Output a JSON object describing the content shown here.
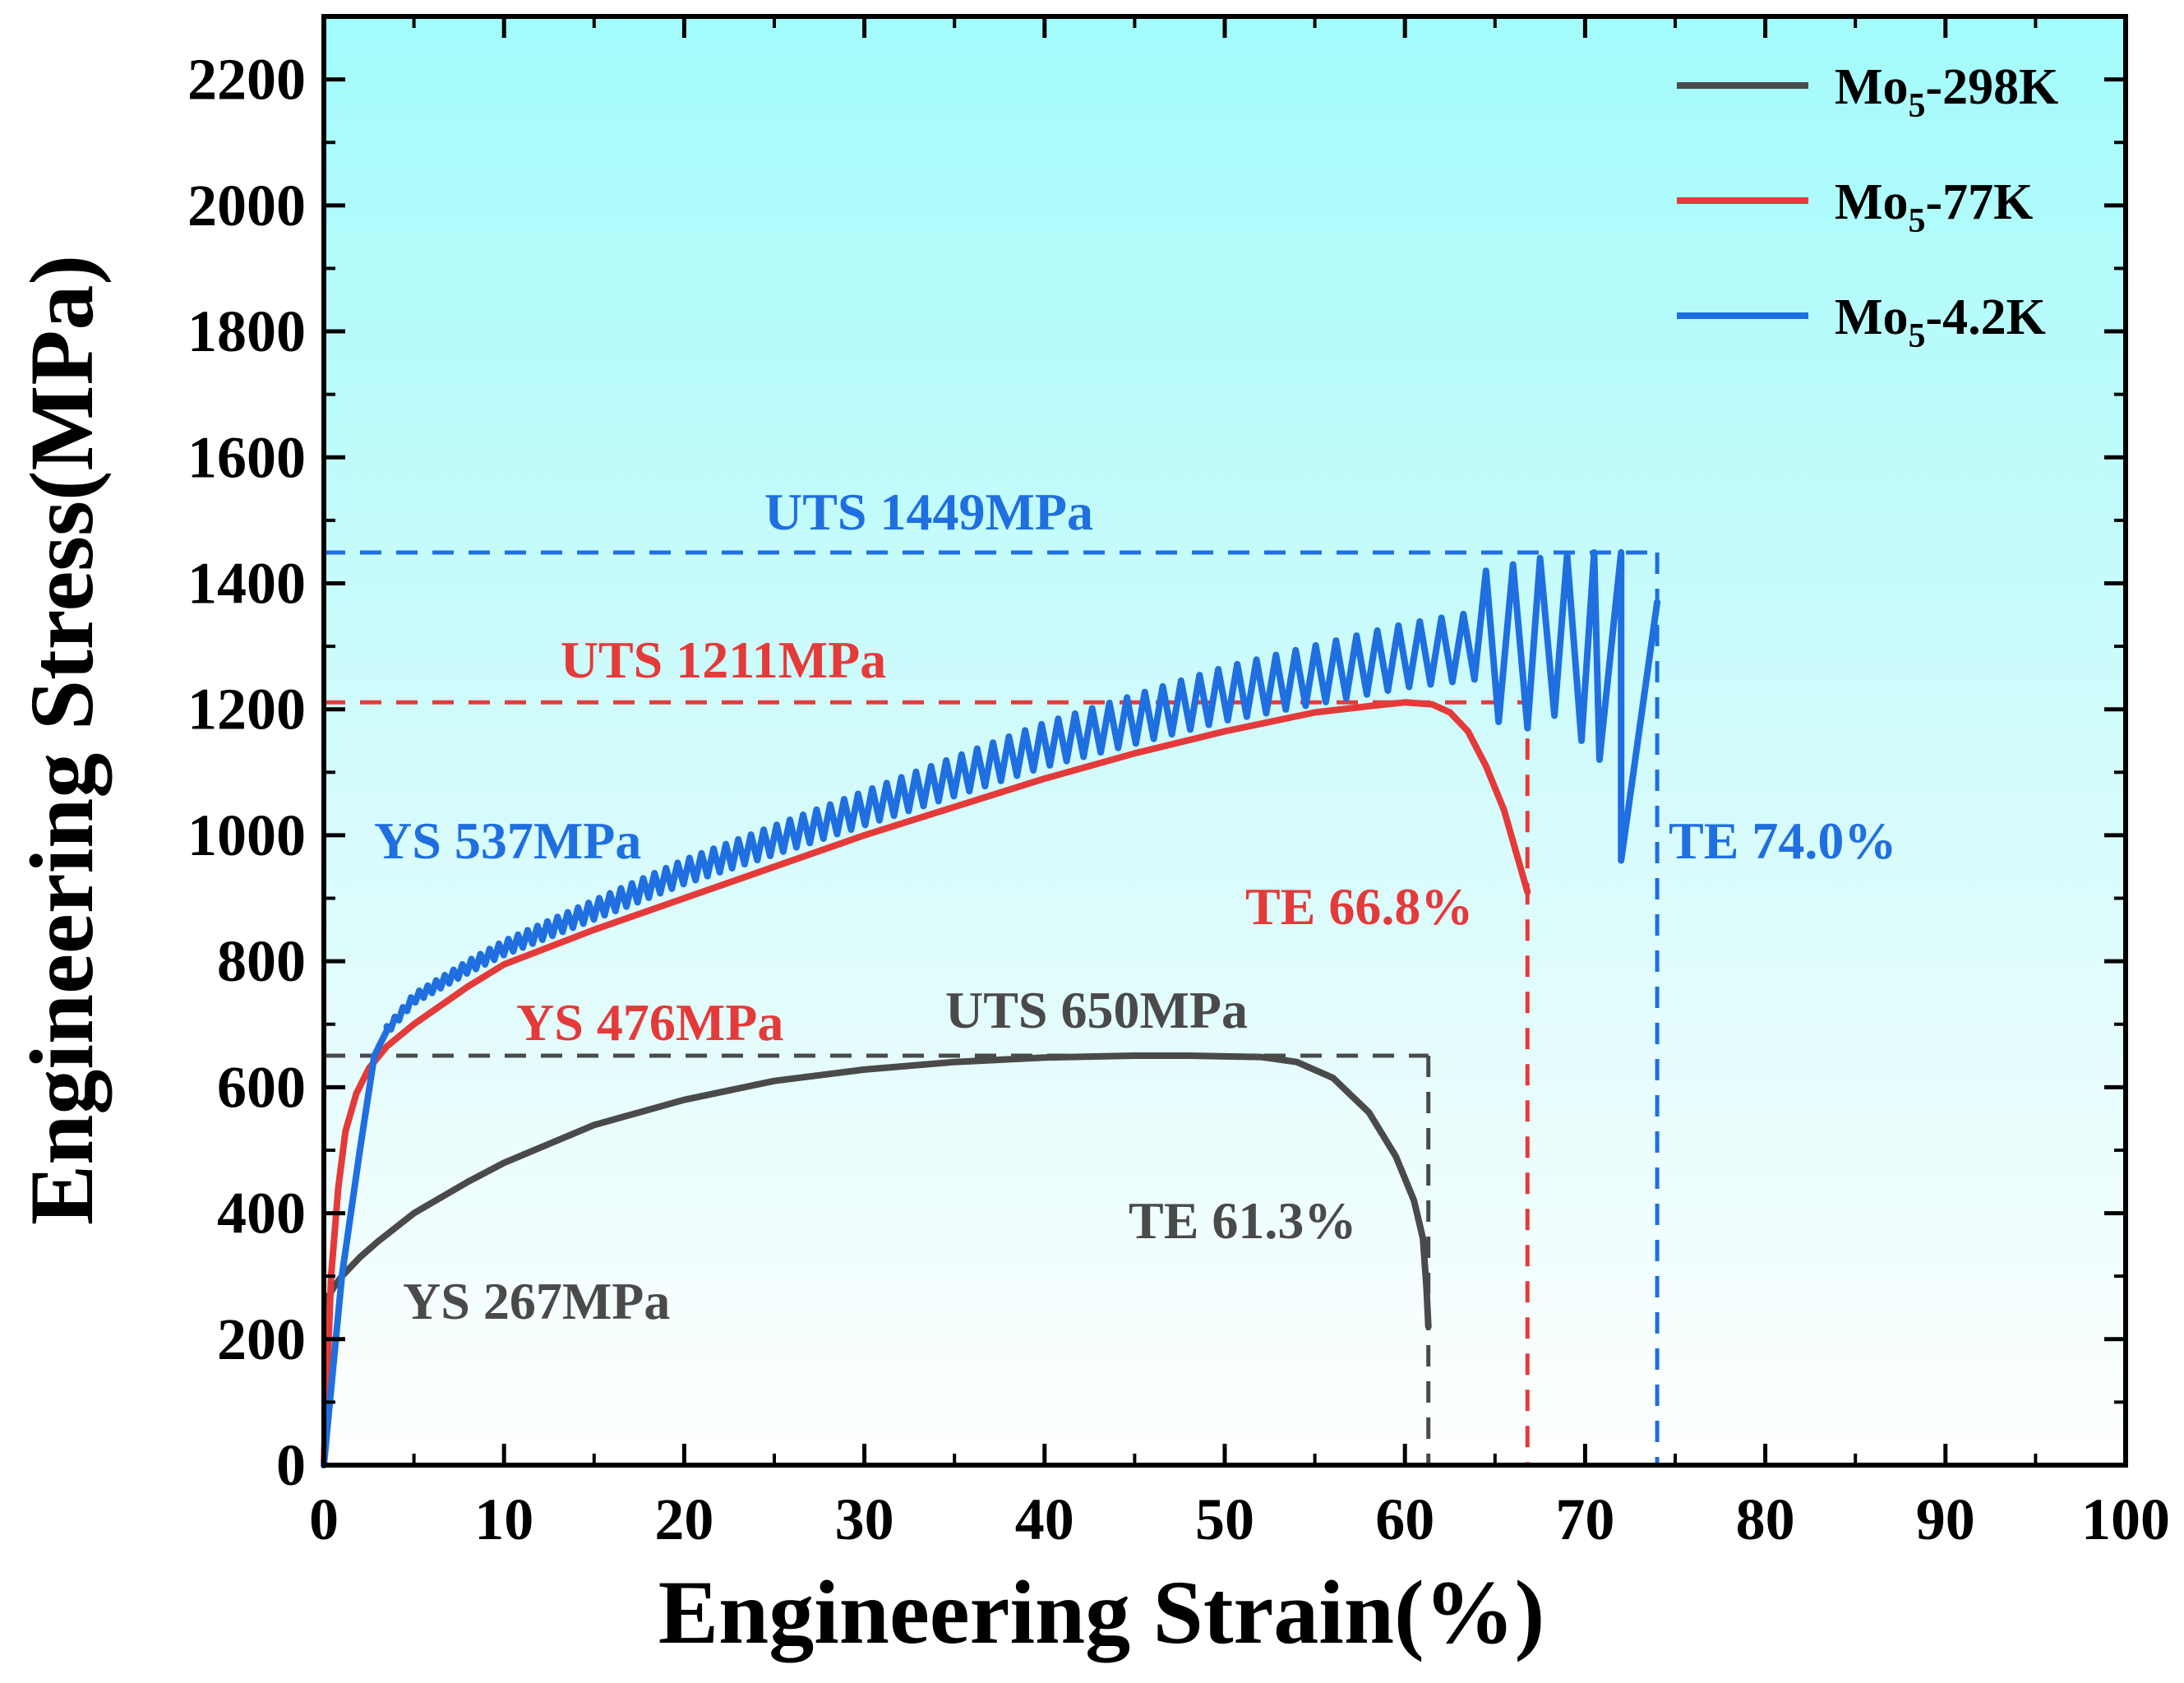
{
  "chart_data": {
    "type": "line",
    "title": "",
    "xlabel": "Engineering Strain(%)",
    "ylabel": "Engineering Stress(MPa)",
    "xlim": [
      0,
      100
    ],
    "ylim": [
      0,
      2300
    ],
    "x_ticks": [
      0,
      10,
      20,
      30,
      40,
      50,
      60,
      70,
      80,
      90,
      100
    ],
    "y_ticks": [
      0,
      200,
      400,
      600,
      800,
      1000,
      1200,
      1400,
      1600,
      1800,
      2000,
      2200
    ],
    "grid": false,
    "legend_position": "top-right",
    "series": [
      {
        "name": "Mo5-298K",
        "legend_base": "Mo",
        "legend_sub": "5",
        "legend_suffix": "-298K",
        "color": "#4a4a4a",
        "x": [
          0,
          0.3,
          0.6,
          1.0,
          2.0,
          3.0,
          5.0,
          8.0,
          10.0,
          15.0,
          20.0,
          25.0,
          30.0,
          35.0,
          40.0,
          45.0,
          48.0,
          52.0,
          54.0,
          56.0,
          58.0,
          59.5,
          60.5,
          61.0,
          61.2,
          61.3
        ],
        "y": [
          0,
          270,
          285,
          300,
          330,
          355,
          400,
          450,
          480,
          540,
          580,
          610,
          628,
          640,
          647,
          650,
          650,
          648,
          640,
          615,
          560,
          490,
          420,
          360,
          280,
          220
        ],
        "serrated": false,
        "annotations": {
          "ys": "YS 267MPa",
          "uts": "UTS 650MPa",
          "te": "TE 61.3%",
          "uts_value": 650,
          "te_value": 61.3
        }
      },
      {
        "name": "Mo5-77K",
        "legend_base": "Mo",
        "legend_sub": "5",
        "legend_suffix": "-77K",
        "color": "#e53a3a",
        "x": [
          0,
          0.4,
          0.8,
          1.2,
          1.8,
          2.5,
          3.5,
          5.0,
          8.0,
          10.0,
          15.0,
          20.0,
          25.0,
          30.0,
          35.0,
          40.0,
          45.0,
          50.0,
          55.0,
          58.0,
          60.0,
          61.5,
          62.5,
          63.5,
          64.5,
          65.5,
          66.2,
          66.6,
          66.8
        ],
        "y": [
          0,
          300,
          440,
          530,
          590,
          630,
          665,
          700,
          760,
          795,
          850,
          900,
          950,
          1000,
          1045,
          1090,
          1130,
          1165,
          1195,
          1205,
          1211,
          1208,
          1195,
          1165,
          1110,
          1040,
          970,
          930,
          910
        ],
        "serrated": false,
        "annotations": {
          "ys": "YS 476MPa",
          "uts": "UTS 1211MPa",
          "te": "TE 66.8%",
          "uts_value": 1211,
          "te_value": 66.8
        }
      },
      {
        "name": "Mo5-4.2K",
        "legend_base": "Mo",
        "legend_sub": "5",
        "legend_suffix": "-4.2K",
        "color": "#1f6fe0",
        "x": [
          0,
          1.0,
          2.0,
          2.8,
          3.5,
          5.0,
          8.0,
          10.0,
          15.0,
          20.0,
          25.0,
          30.0,
          35.0,
          40.0,
          45.0,
          50.0,
          55.0,
          60.0,
          65.0,
          68.0,
          70.0,
          72.0,
          73.5,
          74.0
        ],
        "y": [
          0,
          300,
          500,
          650,
          690,
          740,
          790,
          820,
          880,
          940,
          990,
          1040,
          1090,
          1140,
          1180,
          1220,
          1250,
          1280,
          1300,
          1320,
          1330,
          1340,
          1350,
          1360
        ],
        "serrated": true,
        "peaks": [
          {
            "x": 64.5,
            "y": 1420
          },
          {
            "x": 66.0,
            "y": 1430
          },
          {
            "x": 67.5,
            "y": 1440
          },
          {
            "x": 69.0,
            "y": 1445
          },
          {
            "x": 70.5,
            "y": 1449
          },
          {
            "x": 72.0,
            "y": 1449
          },
          {
            "x": 74.0,
            "y": 1370
          }
        ],
        "troughs": [
          {
            "x": 65.2,
            "y": 1180
          },
          {
            "x": 66.8,
            "y": 1170
          },
          {
            "x": 68.3,
            "y": 1190
          },
          {
            "x": 69.8,
            "y": 1150
          },
          {
            "x": 70.8,
            "y": 1120
          },
          {
            "x": 72.0,
            "y": 960
          }
        ],
        "annotations": {
          "ys": "YS 537MPa",
          "uts": "UTS 1449MPa",
          "te": "TE 74.0%",
          "uts_value": 1449,
          "te_value": 74.0
        }
      }
    ]
  }
}
